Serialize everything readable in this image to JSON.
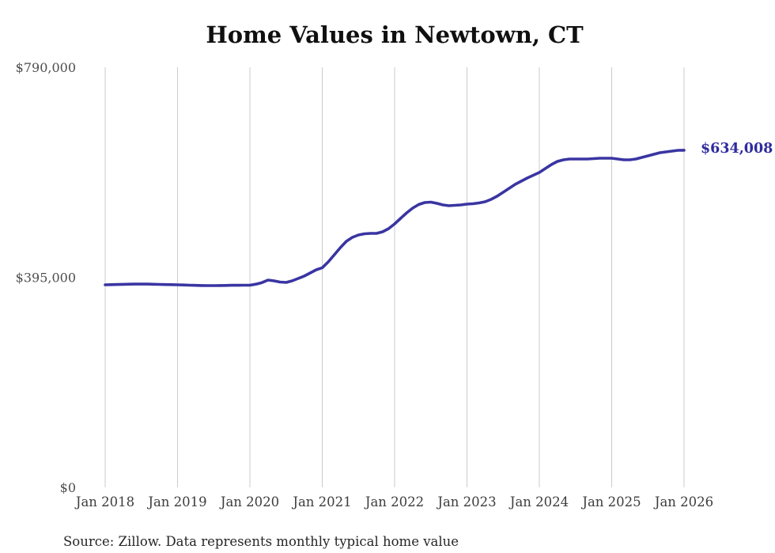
{
  "source": "Source: Zillow. Data represents monthly typical home value",
  "chart_data": {
    "type": "line",
    "title": "Home Values in Newtown, CT",
    "series_name": "Monthly typical home value",
    "frequency": "monthly",
    "x_start": "Jan 2018",
    "x_end": "Jan 2026",
    "x_tick_labels": [
      "Jan 2018",
      "Jan 2019",
      "Jan 2020",
      "Jan 2021",
      "Jan 2022",
      "Jan 2023",
      "Jan 2024",
      "Jan 2025",
      "Jan 2026"
    ],
    "y_tick_labels": [
      "$0",
      "$395,000",
      "$790,000"
    ],
    "y_tick_values": [
      0,
      395000,
      790000
    ],
    "ylim": [
      0,
      790000
    ],
    "grid": "vertical-only",
    "legend": "none",
    "line_color": "#3a35a2",
    "end_label_color": "#2f2b9d",
    "end_label": "$634,008",
    "end_value": 634008,
    "values": [
      380900,
      381200,
      381500,
      381800,
      382000,
      382200,
      382400,
      382200,
      381900,
      381600,
      381300,
      381100,
      380900,
      380500,
      380100,
      379800,
      379600,
      379400,
      379400,
      379500,
      379700,
      379900,
      380000,
      380100,
      380100,
      382000,
      385000,
      389800,
      388300,
      386100,
      385400,
      388300,
      392800,
      397200,
      403200,
      409100,
      413000,
      424000,
      437400,
      450800,
      462700,
      470100,
      474600,
      476800,
      477600,
      477600,
      480500,
      486500,
      495400,
      505900,
      516300,
      525200,
      531900,
      535600,
      536400,
      534100,
      531100,
      529700,
      530400,
      531100,
      532600,
      533400,
      534900,
      537100,
      541600,
      547500,
      555000,
      562400,
      569800,
      575800,
      581700,
      586900,
      592100,
      599600,
      607000,
      613000,
      616000,
      617400,
      617400,
      617400,
      617400,
      618200,
      618900,
      618900,
      618900,
      617400,
      616000,
      616000,
      617400,
      620400,
      623400,
      626400,
      629300,
      630800,
      632300,
      633800,
      634008
    ]
  }
}
